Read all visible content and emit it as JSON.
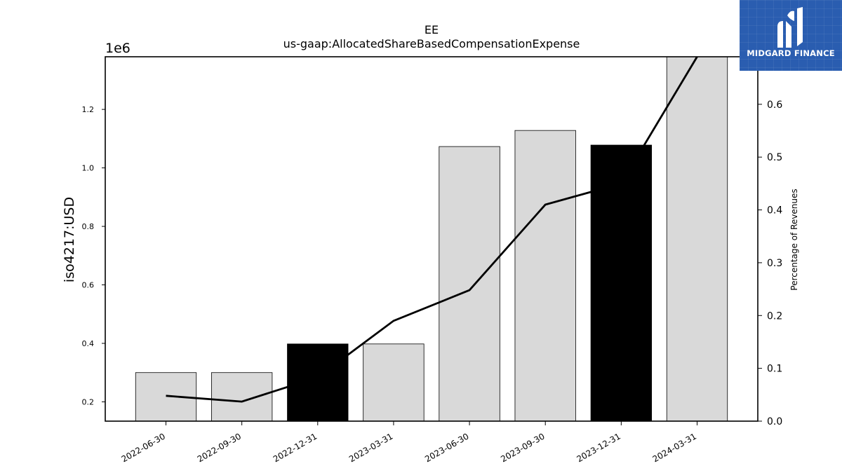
{
  "chart_data": {
    "type": "bar",
    "title": "EE",
    "subtitle": "us-gaap:AllocatedShareBasedCompensationExpense",
    "ylabel": "iso4217:USD",
    "y_offset_label": "1e6",
    "y2label": "Percentage of Revenues",
    "categories": [
      "2022-06-30",
      "2022-09-30",
      "2022-12-31",
      "2023-03-31",
      "2023-06-30",
      "2023-09-30",
      "2023-12-31",
      "2024-03-31"
    ],
    "series": [
      {
        "type": "bar",
        "axis": "left",
        "values": [
          300000,
          300000,
          398000,
          398000,
          1073000,
          1128000,
          1078000,
          1380000
        ],
        "highlight": [
          false,
          false,
          true,
          false,
          false,
          false,
          true,
          false
        ]
      },
      {
        "type": "line",
        "axis": "right",
        "values": [
          0.048,
          0.037,
          0.083,
          0.19,
          0.248,
          0.41,
          0.45,
          0.69
        ]
      }
    ],
    "ylim": [
      134000,
      1380000
    ],
    "y_ticks": [
      0.2,
      0.4,
      0.6,
      0.8,
      1.0,
      1.2
    ],
    "y2lim": [
      0.0,
      0.69
    ],
    "y2_ticks": [
      0.0,
      0.1,
      0.2,
      0.3,
      0.4,
      0.5,
      0.6
    ],
    "grid": false,
    "colors": {
      "bar": "#d9d9d9",
      "bar_highlight": "#000000",
      "line": "#000000",
      "axis": "#000000"
    }
  },
  "logo": {
    "text": "MIDGARD FINANCE",
    "background": "#2a5db0"
  }
}
